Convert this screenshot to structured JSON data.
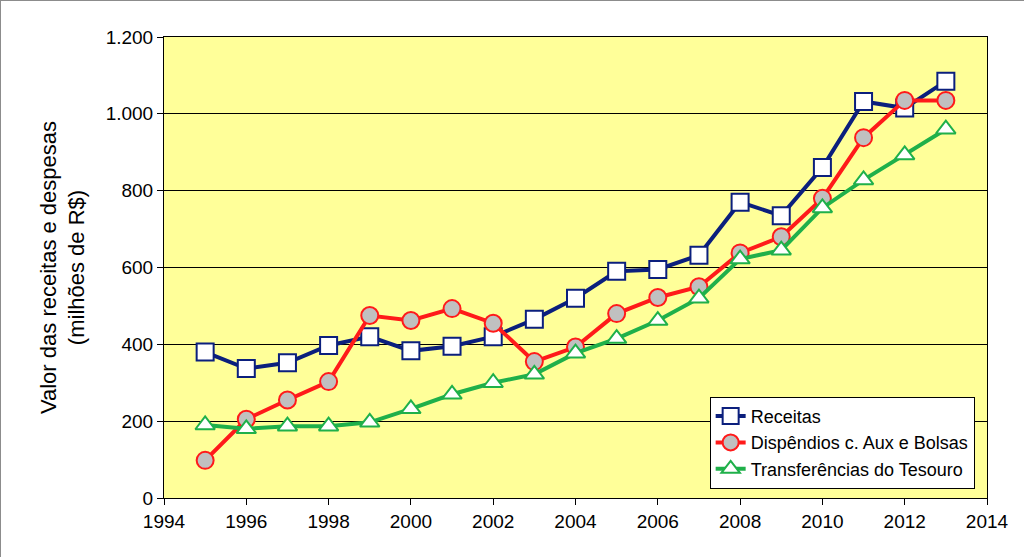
{
  "chart_data": {
    "type": "line",
    "y_label": "Valor das receitas e despesas\n(milhões de R$)",
    "x": [
      1995,
      1996,
      1997,
      1998,
      1999,
      2000,
      2001,
      2002,
      2003,
      2004,
      2005,
      2006,
      2007,
      2008,
      2009,
      2010,
      2011,
      2012,
      2013
    ],
    "series": [
      {
        "name": "Receitas",
        "color": "#0b1f7d",
        "marker": "square",
        "values": [
          380,
          337,
          352,
          397,
          420,
          383,
          395,
          420,
          465,
          520,
          590,
          595,
          632,
          770,
          735,
          860,
          1032,
          1015,
          1085
        ]
      },
      {
        "name": "Dispêndios c. Aux e Bolsas",
        "color": "#ff1a1a",
        "marker": "circle",
        "values": [
          98,
          205,
          255,
          303,
          475,
          462,
          493,
          455,
          355,
          393,
          480,
          522,
          550,
          638,
          680,
          780,
          938,
          1035,
          1035
        ]
      },
      {
        "name": "Transferências do Tesouro",
        "color": "#1fb04a",
        "marker": "triangle",
        "values": [
          190,
          180,
          187,
          187,
          197,
          232,
          270,
          300,
          322,
          377,
          415,
          462,
          520,
          622,
          645,
          755,
          828,
          893,
          960
        ]
      }
    ],
    "xlim": [
      1994,
      2014
    ],
    "xticks": [
      1994,
      1996,
      1998,
      2000,
      2002,
      2004,
      2006,
      2008,
      2010,
      2012,
      2014
    ],
    "ylim": [
      0,
      1200
    ],
    "yticks": [
      0,
      200,
      400,
      600,
      800,
      {
        "value": 1000,
        "label": "1.000"
      },
      {
        "value": 1200,
        "label": "1.200"
      }
    ],
    "grid": "y",
    "legend": "lower right"
  }
}
